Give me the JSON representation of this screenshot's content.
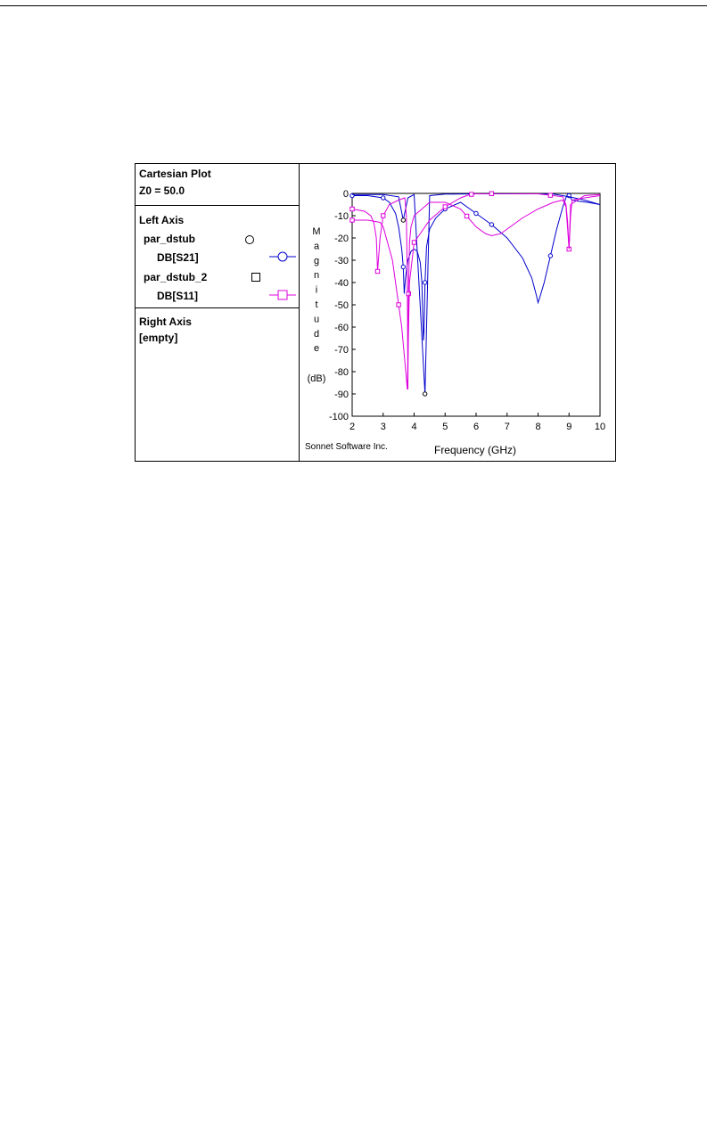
{
  "legend": {
    "plot_type": "Cartesian Plot",
    "z0": "Z0 = 50.0",
    "left_axis_heading": "Left Axis",
    "entries": [
      {
        "file": "par_dstub",
        "marker": "circle",
        "param": "DB[S21]",
        "color": "#0000cc"
      },
      {
        "file": "par_dstub_2",
        "marker": "square",
        "param": "DB[S11]",
        "color": "#dd00dd"
      }
    ],
    "right_axis_heading": "Right Axis",
    "right_axis_value": "[empty]"
  },
  "chart_data": {
    "type": "line",
    "ylabel_letters": [
      "M",
      "a",
      "g",
      "n",
      "i",
      "t",
      "u",
      "d",
      "e"
    ],
    "yunit": "(dB)",
    "xlabel": "Frequency (GHz)",
    "credit": "Sonnet Software Inc.",
    "xlim": [
      2,
      10
    ],
    "ylim": [
      -100,
      0
    ],
    "xticks": [
      2,
      3,
      4,
      5,
      6,
      7,
      8,
      9,
      10
    ],
    "yticks": [
      0,
      -10,
      -20,
      -30,
      -40,
      -50,
      -60,
      -70,
      -80,
      -90,
      -100
    ],
    "series": [
      {
        "file": "par_dstub",
        "param": "DB[S21]",
        "marker": "circle",
        "color": "#0000cc",
        "x": [
          2,
          2.5,
          3.0,
          3.2,
          3.4,
          3.5,
          3.6,
          3.65,
          3.68,
          3.72,
          3.8,
          3.9,
          4.0,
          4.1,
          4.2,
          4.25,
          4.28,
          4.3,
          4.32,
          4.35,
          4.4,
          4.5,
          4.7,
          5.0,
          5.5,
          6.0,
          6.5,
          7.0,
          7.5,
          7.8,
          7.95,
          8.0,
          8.05,
          8.2,
          8.4,
          8.6,
          8.8,
          8.9,
          8.95,
          9.0,
          9.1,
          9.3,
          9.6,
          10
        ],
        "y": [
          -1,
          -1,
          -2,
          -4,
          -9,
          -15,
          -25,
          -33,
          -45,
          -38,
          -30,
          -26,
          -25,
          -26,
          -31,
          -40,
          -55,
          -66,
          -62,
          -40,
          -24,
          -16,
          -11,
          -7,
          -4,
          -9,
          -14,
          -20,
          -29,
          -38,
          -46,
          -49,
          -47,
          -40,
          -28,
          -16,
          -6,
          -2,
          -0.5,
          -1,
          -3,
          -3.5,
          -4,
          -5
        ],
        "marker_x": [
          2,
          3,
          3.65,
          4.35,
          5,
          6,
          6.5,
          8.4,
          9
        ]
      },
      {
        "file": "par_dstub",
        "param": "DB[S11]",
        "marker": "circle",
        "color": "#0000cc",
        "x": [
          2,
          3,
          3.5,
          3.65,
          3.8,
          4.0,
          4.35,
          4.5,
          5,
          6,
          7,
          8,
          8.5,
          9,
          9.5,
          10
        ],
        "y": [
          -0.5,
          -0.5,
          -1.5,
          -12,
          -2,
          -0.5,
          -90,
          -1,
          -0.3,
          -0.2,
          -0.2,
          -0.2,
          -0.3,
          -1.5,
          -3,
          -5
        ],
        "marker_x": [
          3.65,
          4.35
        ]
      },
      {
        "file": "par_dstub_2",
        "param": "DB[S11]",
        "marker": "square",
        "color": "#dd00dd",
        "x": [
          2,
          2.4,
          2.6,
          2.7,
          2.78,
          2.82,
          2.9,
          3.0,
          3.2,
          3.5,
          3.7,
          3.75,
          3.78,
          3.8,
          3.82,
          3.85,
          3.9,
          4.0,
          4.5,
          5.0,
          5.5,
          6.0,
          6.3,
          6.5,
          6.8,
          7.0,
          7.5,
          8.0,
          8.5,
          8.8,
          8.9,
          8.95,
          9.0,
          9.05,
          9.1,
          9.5,
          10
        ],
        "y": [
          -7,
          -8,
          -10,
          -13,
          -20,
          -35,
          -20,
          -10,
          -5,
          -3,
          -2,
          -10,
          -40,
          -88,
          -45,
          -22,
          -15,
          -10,
          -4,
          -4,
          -7,
          -15,
          -18,
          -19,
          -18,
          -16,
          -11,
          -7,
          -4,
          -3,
          -6,
          -15,
          -25,
          -10,
          -3,
          -2,
          -1
        ],
        "marker_x": [
          2,
          2.82,
          3.0,
          3.82,
          5.7,
          9.0
        ]
      },
      {
        "file": "par_dstub_2",
        "param": "DB[S21]",
        "marker": "square",
        "color": "#dd00dd",
        "x": [
          2,
          2.5,
          2.9,
          3.0,
          3.3,
          3.6,
          3.78,
          3.85,
          4.0,
          4.5,
          5.0,
          5.5,
          5.8,
          6.0,
          6.5,
          7.0,
          8.0,
          8.8,
          8.9,
          8.95,
          9.0,
          9.05,
          9.5,
          10
        ],
        "y": [
          -12,
          -12,
          -13,
          -15,
          -30,
          -60,
          -88,
          -40,
          -22,
          -12,
          -6,
          -2,
          -0.5,
          -0.2,
          -0.1,
          -0.1,
          -0.2,
          -1.5,
          -5,
          -12,
          -25,
          -5,
          -1,
          -0.5
        ],
        "marker_x": [
          2,
          3.5,
          4.0,
          5.0,
          5.85,
          6.5,
          8.4
        ]
      }
    ]
  }
}
